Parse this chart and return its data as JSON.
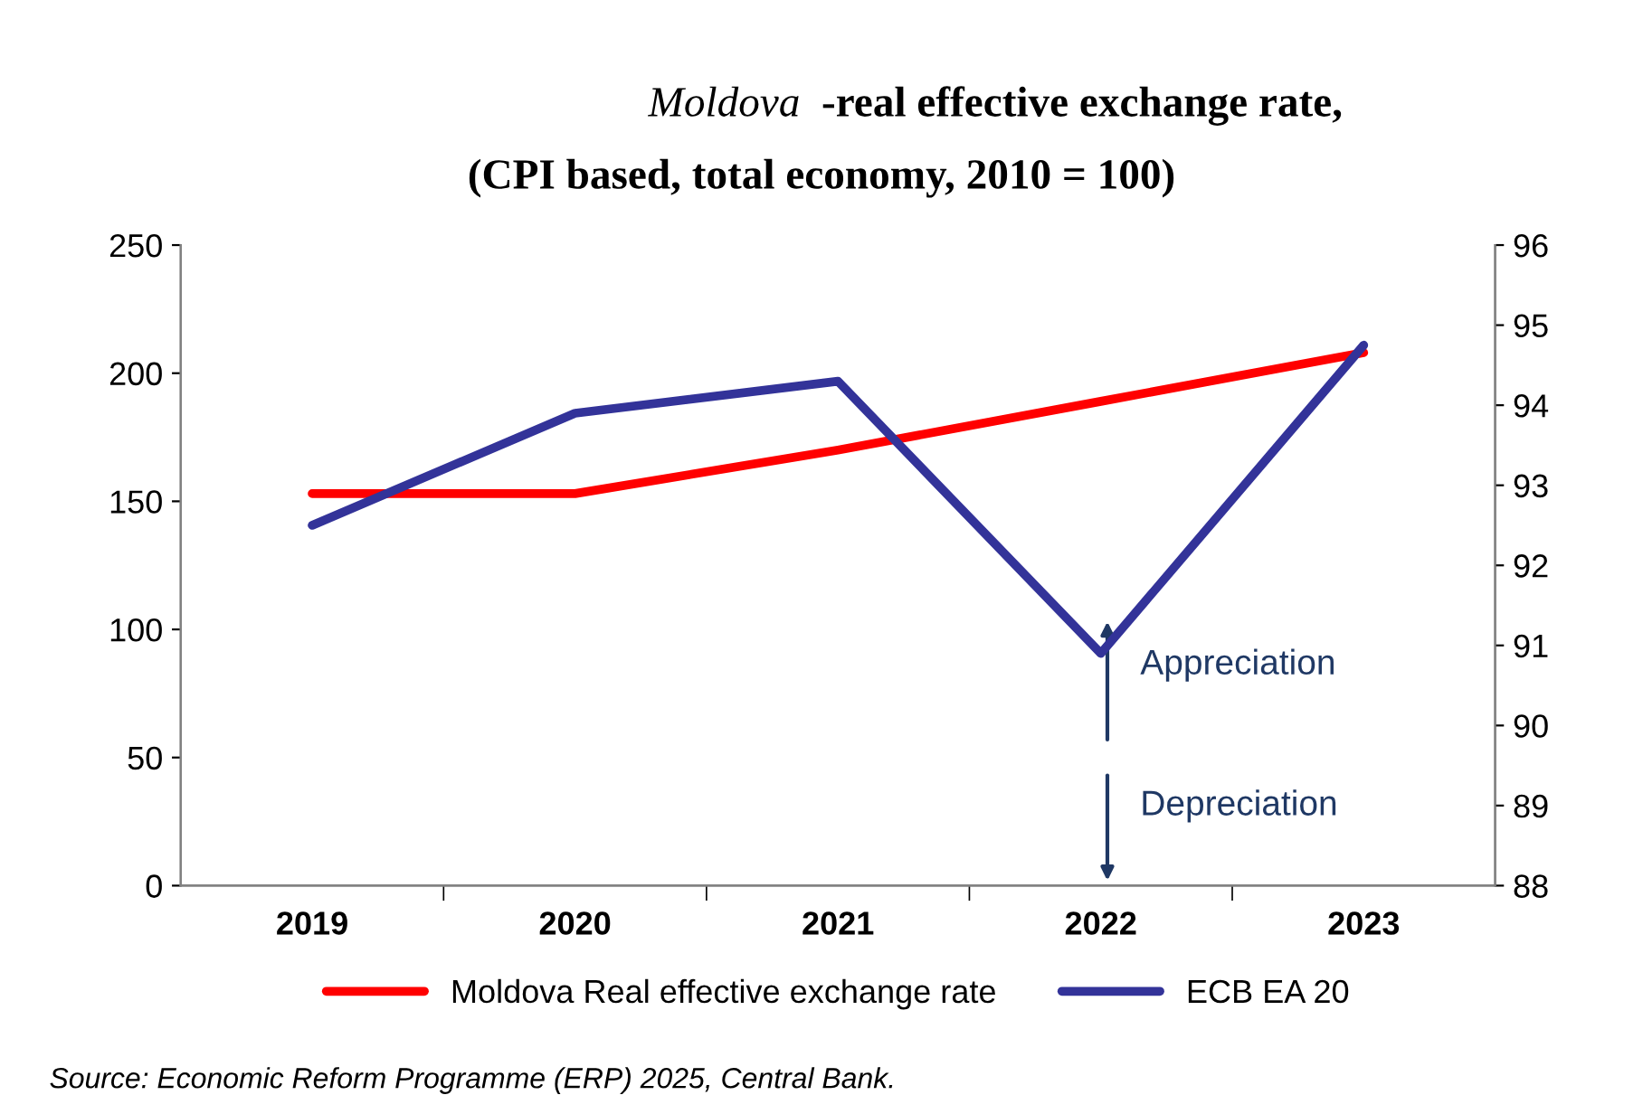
{
  "chart_data": {
    "type": "line",
    "title": "Moldova -real effective exchange rate,\n(CPI based, total economy, 2010 = 100)",
    "categories": [
      "2019",
      "2020",
      "2021",
      "2022",
      "2023"
    ],
    "series": [
      {
        "name": "Moldova Real effective exchange rate",
        "color": "#ff0000",
        "values": [
          153,
          153,
          170,
          189,
          208
        ]
      },
      {
        "name": "ECB EA 20",
        "color": "#333399",
        "values": [
          92.5,
          93.9,
          94.3,
          90.9,
          94.75
        ],
        "axis": "y2"
      }
    ],
    "ylim": [
      0,
      250
    ],
    "yticks": [
      0,
      50,
      100,
      150,
      200,
      250
    ],
    "y2lim": [
      88,
      96
    ],
    "y2ticks": [
      88,
      89,
      90,
      91,
      92,
      93,
      94,
      95,
      96
    ],
    "grid": false,
    "legend": "bottom",
    "marker": "none",
    "line_style": "solid",
    "annotations": [
      "Appreciation",
      "Depreciation",
      "Source: Economic Reform Programme (ERP) 2025, Central Bank."
    ]
  }
}
